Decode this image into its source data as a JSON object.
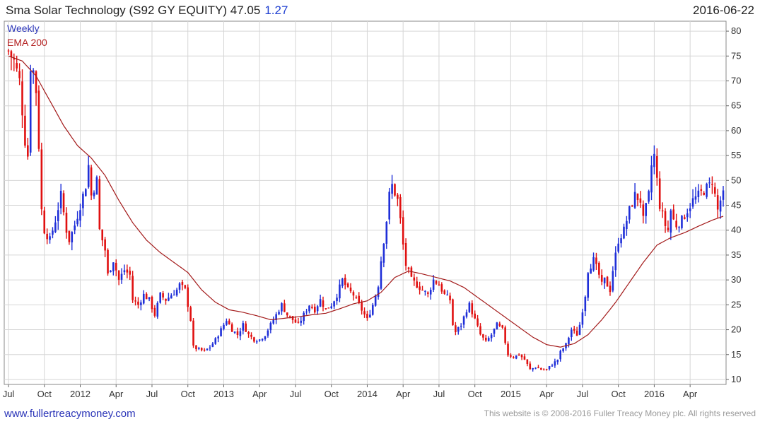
{
  "header": {
    "title": "Sma Solar Technology (S92 GY EQUITY) 47.05",
    "change": "1.27",
    "date": "2016-06-22"
  },
  "legend": {
    "weekly": "Weekly",
    "ema": "EMA 200"
  },
  "footer": {
    "left": "www.fullertreacymoney.com",
    "right": "This website is © 2008-2016 Fuller Treacy Money plc. All rights reserved"
  },
  "colors": {
    "up": "#1f2fd8",
    "down": "#e01010",
    "ema": "#a31a1a",
    "grid": "#d6d6d6"
  },
  "chart_data": {
    "type": "candlestick",
    "ylim": [
      9,
      82
    ],
    "y_ticks": [
      10,
      15,
      20,
      25,
      30,
      35,
      40,
      45,
      50,
      55,
      60,
      65,
      70,
      75,
      80
    ],
    "x_ticks": [
      {
        "label": "Jul",
        "i": 0
      },
      {
        "label": "Oct",
        "i": 13
      },
      {
        "label": "2012",
        "i": 26
      },
      {
        "label": "Apr",
        "i": 39
      },
      {
        "label": "Jul",
        "i": 52
      },
      {
        "label": "Oct",
        "i": 65
      },
      {
        "label": "2013",
        "i": 78
      },
      {
        "label": "Apr",
        "i": 91
      },
      {
        "label": "Jul",
        "i": 104
      },
      {
        "label": "Oct",
        "i": 117
      },
      {
        "label": "2014",
        "i": 130
      },
      {
        "label": "Apr",
        "i": 143
      },
      {
        "label": "Jul",
        "i": 156
      },
      {
        "label": "Oct",
        "i": 169
      },
      {
        "label": "2015",
        "i": 182
      },
      {
        "label": "Apr",
        "i": 195
      },
      {
        "label": "Jul",
        "i": 208
      },
      {
        "label": "Oct",
        "i": 221
      },
      {
        "label": "2016",
        "i": 234
      },
      {
        "label": "Apr",
        "i": 247
      }
    ],
    "n_periods": 260,
    "close_anchors": [
      [
        0,
        76
      ],
      [
        2,
        74
      ],
      [
        4,
        70
      ],
      [
        6,
        58
      ],
      [
        7,
        55
      ],
      [
        8,
        73
      ],
      [
        9,
        72
      ],
      [
        10,
        68
      ],
      [
        11,
        57
      ],
      [
        12,
        44
      ],
      [
        13,
        40
      ],
      [
        15,
        38
      ],
      [
        17,
        42
      ],
      [
        19,
        47
      ],
      [
        21,
        40
      ],
      [
        22,
        38
      ],
      [
        24,
        41
      ],
      [
        26,
        45
      ],
      [
        28,
        49
      ],
      [
        29,
        53
      ],
      [
        30,
        47
      ],
      [
        32,
        50
      ],
      [
        33,
        40
      ],
      [
        35,
        36
      ],
      [
        36,
        31
      ],
      [
        38,
        34
      ],
      [
        40,
        30
      ],
      [
        42,
        32
      ],
      [
        44,
        31
      ],
      [
        45,
        26
      ],
      [
        47,
        25
      ],
      [
        49,
        27
      ],
      [
        51,
        26
      ],
      [
        53,
        23
      ],
      [
        55,
        27
      ],
      [
        57,
        26
      ],
      [
        59,
        27
      ],
      [
        61,
        28
      ],
      [
        62,
        29
      ],
      [
        64,
        28
      ],
      [
        66,
        22
      ],
      [
        67,
        16.5
      ],
      [
        69,
        16
      ],
      [
        71,
        15.7
      ],
      [
        73,
        16.5
      ],
      [
        75,
        18
      ],
      [
        77,
        20
      ],
      [
        79,
        22
      ],
      [
        81,
        20
      ],
      [
        83,
        19
      ],
      [
        85,
        21
      ],
      [
        87,
        19
      ],
      [
        89,
        18
      ],
      [
        91,
        18
      ],
      [
        93,
        19
      ],
      [
        95,
        21
      ],
      [
        97,
        23
      ],
      [
        99,
        25
      ],
      [
        101,
        23
      ],
      [
        103,
        22
      ],
      [
        105,
        21
      ],
      [
        107,
        23
      ],
      [
        109,
        25
      ],
      [
        111,
        24
      ],
      [
        113,
        26
      ],
      [
        115,
        24
      ],
      [
        117,
        25
      ],
      [
        119,
        27
      ],
      [
        121,
        30
      ],
      [
        123,
        28
      ],
      [
        125,
        27
      ],
      [
        127,
        25
      ],
      [
        129,
        23
      ],
      [
        130,
        22
      ],
      [
        132,
        25
      ],
      [
        134,
        29
      ],
      [
        135,
        34
      ],
      [
        137,
        42
      ],
      [
        138,
        47
      ],
      [
        139,
        49
      ],
      [
        141,
        46
      ],
      [
        142,
        42
      ],
      [
        143,
        37
      ],
      [
        144,
        33
      ],
      [
        146,
        30
      ],
      [
        148,
        29
      ],
      [
        150,
        28
      ],
      [
        152,
        27
      ],
      [
        154,
        30
      ],
      [
        156,
        29
      ],
      [
        158,
        27
      ],
      [
        160,
        26
      ],
      [
        161,
        21
      ],
      [
        162,
        19.5
      ],
      [
        164,
        21
      ],
      [
        166,
        24
      ],
      [
        167,
        25
      ],
      [
        169,
        22
      ],
      [
        171,
        19
      ],
      [
        173,
        17.5
      ],
      [
        175,
        19
      ],
      [
        177,
        21
      ],
      [
        179,
        20
      ],
      [
        181,
        15
      ],
      [
        183,
        14.5
      ],
      [
        185,
        15
      ],
      [
        187,
        14
      ],
      [
        189,
        12
      ],
      [
        191,
        12.5
      ],
      [
        193,
        12
      ],
      [
        195,
        12
      ],
      [
        197,
        13
      ],
      [
        199,
        14
      ],
      [
        200,
        15.5
      ],
      [
        202,
        17
      ],
      [
        204,
        20
      ],
      [
        206,
        19
      ],
      [
        207,
        21
      ],
      [
        208,
        24
      ],
      [
        209,
        27
      ],
      [
        210,
        32
      ],
      [
        212,
        34
      ],
      [
        214,
        31
      ],
      [
        215,
        29
      ],
      [
        216,
        30
      ],
      [
        218,
        28
      ],
      [
        219,
        32
      ],
      [
        221,
        38
      ],
      [
        223,
        40
      ],
      [
        225,
        44
      ],
      [
        227,
        47
      ],
      [
        229,
        46
      ],
      [
        230,
        42
      ],
      [
        232,
        47
      ],
      [
        233,
        53
      ],
      [
        234,
        55
      ],
      [
        235,
        50
      ],
      [
        236,
        45
      ],
      [
        237,
        43
      ],
      [
        238,
        41
      ],
      [
        239,
        40
      ],
      [
        240,
        44
      ],
      [
        241,
        42
      ],
      [
        242,
        41
      ],
      [
        244,
        42
      ],
      [
        246,
        44
      ],
      [
        248,
        46
      ],
      [
        250,
        47
      ],
      [
        252,
        48
      ],
      [
        254,
        49
      ],
      [
        255,
        50
      ],
      [
        256,
        47
      ],
      [
        257,
        44
      ],
      [
        258,
        46
      ],
      [
        259,
        47
      ]
    ],
    "ema_anchors": [
      [
        0,
        75
      ],
      [
        5,
        74
      ],
      [
        10,
        71
      ],
      [
        15,
        66
      ],
      [
        20,
        61
      ],
      [
        25,
        57
      ],
      [
        30,
        54.5
      ],
      [
        35,
        51
      ],
      [
        40,
        46
      ],
      [
        45,
        41.5
      ],
      [
        50,
        38
      ],
      [
        55,
        35.5
      ],
      [
        60,
        33.5
      ],
      [
        65,
        31.5
      ],
      [
        70,
        28
      ],
      [
        75,
        25.5
      ],
      [
        80,
        24
      ],
      [
        85,
        23.5
      ],
      [
        90,
        22.8
      ],
      [
        95,
        22
      ],
      [
        100,
        22.3
      ],
      [
        105,
        22.6
      ],
      [
        110,
        23
      ],
      [
        115,
        23.3
      ],
      [
        120,
        24.2
      ],
      [
        125,
        25.2
      ],
      [
        130,
        25.8
      ],
      [
        135,
        27.5
      ],
      [
        140,
        30.5
      ],
      [
        145,
        31.8
      ],
      [
        150,
        31.2
      ],
      [
        155,
        30.5
      ],
      [
        160,
        29.8
      ],
      [
        165,
        28.5
      ],
      [
        170,
        26.5
      ],
      [
        175,
        24.5
      ],
      [
        180,
        22.5
      ],
      [
        185,
        20.5
      ],
      [
        190,
        18.5
      ],
      [
        195,
        17
      ],
      [
        200,
        16.5
      ],
      [
        205,
        17.2
      ],
      [
        210,
        19
      ],
      [
        215,
        22
      ],
      [
        220,
        25.5
      ],
      [
        225,
        29.5
      ],
      [
        230,
        33.5
      ],
      [
        235,
        37
      ],
      [
        240,
        38.5
      ],
      [
        245,
        39.5
      ],
      [
        250,
        40.8
      ],
      [
        255,
        42
      ],
      [
        259,
        42.8
      ]
    ]
  }
}
